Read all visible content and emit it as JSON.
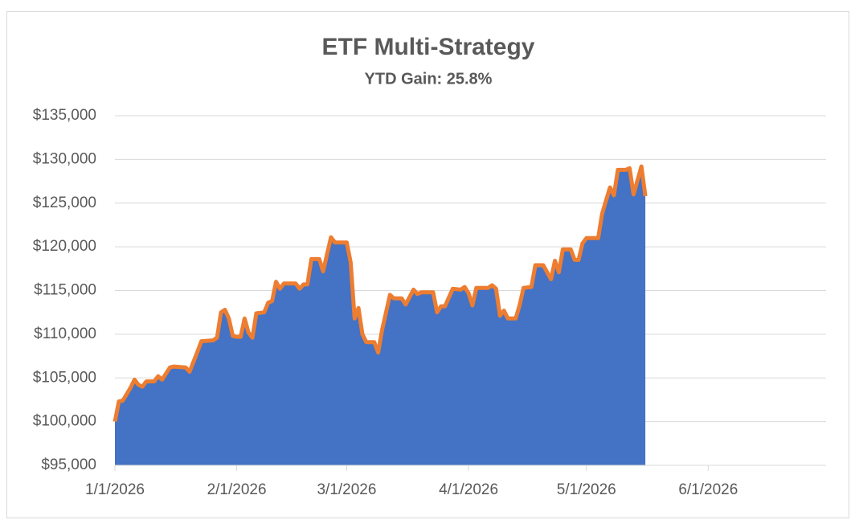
{
  "chart_data": {
    "type": "area",
    "title": "ETF Multi-Strategy",
    "subtitle": "YTD Gain: 25.8%",
    "x": [
      "1/1/2026",
      "1/2/2026",
      "1/3/2026",
      "1/5/2026",
      "1/6/2026",
      "1/7/2026",
      "1/8/2026",
      "1/9/2026",
      "1/11/2026",
      "1/12/2026",
      "1/13/2026",
      "1/14/2026",
      "1/15/2026",
      "1/16/2026",
      "1/19/2026",
      "1/20/2026",
      "1/22/2026",
      "1/23/2026",
      "1/26/2026",
      "1/27/2026",
      "1/28/2026",
      "1/29/2026",
      "1/30/2026",
      "1/31/2026",
      "2/1/2026",
      "2/2/2026",
      "2/3/2026",
      "2/4/2026",
      "2/5/2026",
      "2/6/2026",
      "2/8/2026",
      "2/9/2026",
      "2/10/2026",
      "2/11/2026",
      "2/12/2026",
      "2/13/2026",
      "2/16/2026",
      "2/17/2026",
      "2/18/2026",
      "2/19/2026",
      "2/20/2026",
      "2/22/2026",
      "2/23/2026",
      "2/25/2026",
      "2/26/2026",
      "3/1/2026",
      "3/2/2026",
      "3/3/2026",
      "3/4/2026",
      "3/5/2026",
      "3/6/2026",
      "3/8/2026",
      "3/9/2026",
      "3/10/2026",
      "3/12/2026",
      "3/13/2026",
      "3/15/2026",
      "3/16/2026",
      "3/18/2026",
      "3/19/2026",
      "3/20/2026",
      "3/23/2026",
      "3/24/2026",
      "3/25/2026",
      "3/26/2026",
      "3/28/2026",
      "3/30/2026",
      "3/31/2026",
      "4/1/2026",
      "4/2/2026",
      "4/3/2026",
      "4/6/2026",
      "4/7/2026",
      "4/8/2026",
      "4/9/2026",
      "4/10/2026",
      "4/11/2026",
      "4/13/2026",
      "4/14/2026",
      "4/15/2026",
      "4/17/2026",
      "4/18/2026",
      "4/20/2026",
      "4/22/2026",
      "4/23/2026",
      "4/24/2026",
      "4/25/2026",
      "4/27/2026",
      "4/28/2026",
      "4/29/2026",
      "4/30/2026",
      "5/1/2026",
      "5/4/2026",
      "5/5/2026",
      "5/7/2026",
      "5/8/2026",
      "5/9/2026",
      "5/11/2026",
      "5/12/2026",
      "5/13/2026",
      "5/15/2026",
      "5/16/2026"
    ],
    "series": [
      {
        "name": "ETF Multi-Strategy",
        "color": "#4472c4",
        "line_color": "#ed7d31",
        "values": [
          100000,
          102300,
          102400,
          103900,
          104800,
          104200,
          104000,
          104600,
          104600,
          105200,
          104800,
          105500,
          106200,
          106300,
          106200,
          105700,
          108000,
          109200,
          109300,
          109600,
          112500,
          112800,
          111800,
          109800,
          109700,
          109700,
          111800,
          110200,
          109600,
          112400,
          112500,
          113600,
          113800,
          116000,
          115200,
          115800,
          115800,
          115200,
          115700,
          115700,
          118600,
          118600,
          117200,
          121100,
          120500,
          120500,
          118200,
          111800,
          113000,
          110000,
          109100,
          109100,
          107900,
          110500,
          114500,
          114100,
          114100,
          113400,
          115100,
          114600,
          114800,
          114800,
          112500,
          113200,
          113200,
          115200,
          115100,
          115400,
          114700,
          113300,
          115300,
          115300,
          115600,
          115200,
          112100,
          112700,
          111800,
          111800,
          113300,
          115300,
          115400,
          117900,
          117900,
          116300,
          118400,
          117100,
          119700,
          119700,
          118500,
          118500,
          120400,
          121000,
          121000,
          123800,
          126800,
          125900,
          128800,
          128800,
          129000,
          126000,
          129200,
          125800
        ]
      }
    ],
    "xlim": [
      "1/1/2026",
      "7/1/2026"
    ],
    "xticks": [
      "1/1/2026",
      "2/1/2026",
      "3/1/2026",
      "4/1/2026",
      "5/1/2026",
      "6/1/2026"
    ],
    "ylim": [
      95000,
      135000
    ],
    "yticks": [
      {
        "value": 95000,
        "label": "$95,000"
      },
      {
        "value": 100000,
        "label": "$100,000"
      },
      {
        "value": 105000,
        "label": "$105,000"
      },
      {
        "value": 110000,
        "label": "$110,000"
      },
      {
        "value": 115000,
        "label": "$115,000"
      },
      {
        "value": 120000,
        "label": "$120,000"
      },
      {
        "value": 125000,
        "label": "$125,000"
      },
      {
        "value": 130000,
        "label": "$130,000"
      },
      {
        "value": 135000,
        "label": "$135,000"
      }
    ],
    "grid": true
  }
}
